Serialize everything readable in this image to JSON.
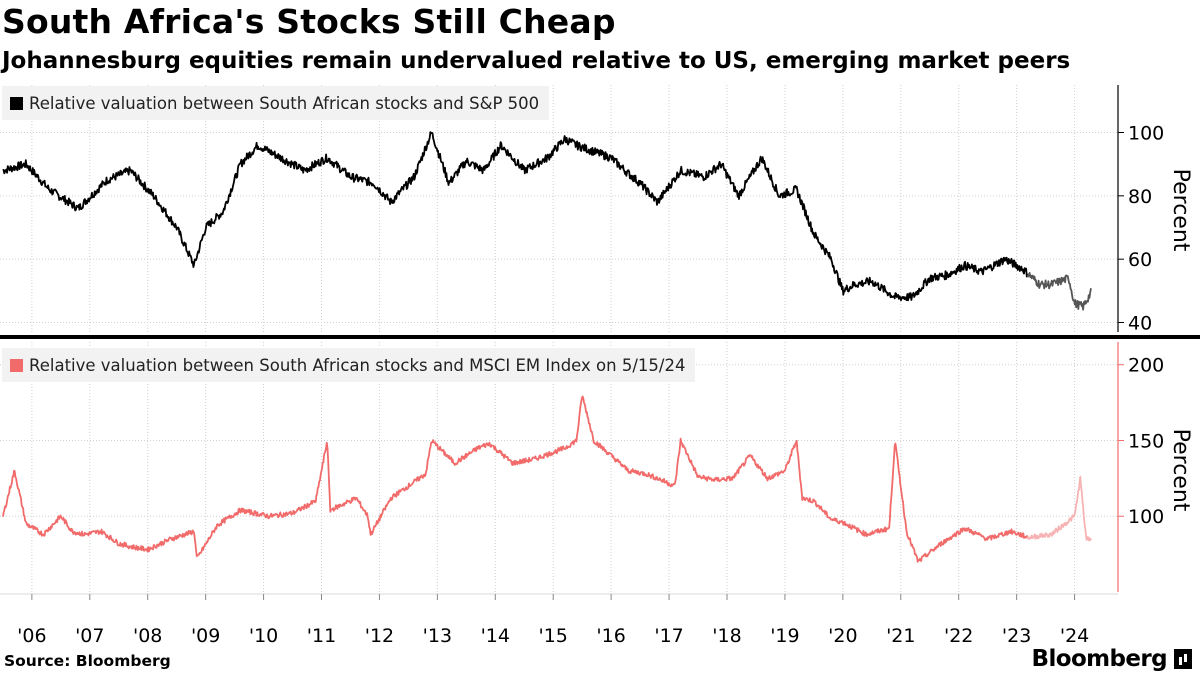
{
  "header": {
    "title": "South Africa's Stocks Still Cheap",
    "subtitle": "Johannesburg equities remain undervalued relative to US, emerging market peers"
  },
  "footer": {
    "source": "Source: Bloomberg",
    "brand": "Bloomberg"
  },
  "colors": {
    "top_series": "#000000",
    "bottom_series": "#f26b6b",
    "grid": "#c8c8c8"
  },
  "chart_data": [
    {
      "type": "line",
      "legend": "Relative valuation between South African stocks and S&P 500",
      "ylabel": "Percent",
      "ylim": [
        37,
        115
      ],
      "yticks": [
        40,
        60,
        80,
        100
      ],
      "x": [
        2005.5,
        2005.9,
        2006.3,
        2006.8,
        2007.3,
        2007.7,
        2008.1,
        2008.5,
        2008.8,
        2009.0,
        2009.3,
        2009.6,
        2009.9,
        2010.3,
        2010.7,
        2011.1,
        2011.5,
        2011.9,
        2012.2,
        2012.6,
        2012.9,
        2013.2,
        2013.5,
        2013.8,
        2014.1,
        2014.5,
        2014.9,
        2015.2,
        2015.4,
        2015.7,
        2016.0,
        2016.3,
        2016.5,
        2016.8,
        2017.2,
        2017.6,
        2017.9,
        2018.2,
        2018.6,
        2018.9,
        2019.2,
        2019.5,
        2019.8,
        2020.0,
        2020.2,
        2020.5,
        2020.9,
        2021.2,
        2021.5,
        2021.8,
        2022.1,
        2022.4,
        2022.8,
        2023.1,
        2023.4,
        2023.6,
        2023.9,
        2024.0,
        2024.15,
        2024.3
      ],
      "values": [
        88,
        90,
        82,
        76,
        85,
        88,
        80,
        70,
        58,
        70,
        75,
        90,
        96,
        92,
        88,
        92,
        86,
        84,
        78,
        86,
        100,
        84,
        91,
        88,
        96,
        88,
        92,
        98,
        96,
        94,
        92,
        87,
        84,
        78,
        88,
        86,
        90,
        80,
        92,
        80,
        82,
        68,
        60,
        50,
        52,
        53,
        48,
        48,
        54,
        55,
        58,
        56,
        60,
        57,
        52,
        52,
        54,
        46,
        45,
        50
      ],
      "series_style": "solid-black; last segment (2023.2 onward) dark gray"
    },
    {
      "type": "line",
      "legend": "Relative valuation between South African stocks and MSCI EM Index on 5/15/24",
      "ylabel": "Percent",
      "ylim": [
        50,
        215
      ],
      "yticks": [
        100,
        150,
        200
      ],
      "x": [
        2005.5,
        2005.7,
        2005.9,
        2006.2,
        2006.5,
        2006.7,
        2006.9,
        2007.2,
        2007.5,
        2007.7,
        2008.0,
        2008.4,
        2008.8,
        2008.85,
        2009.2,
        2009.6,
        2010.1,
        2010.5,
        2010.9,
        2011.1,
        2011.15,
        2011.6,
        2011.8,
        2011.85,
        2012.2,
        2012.8,
        2012.9,
        2013.3,
        2013.7,
        2013.9,
        2014.3,
        2014.7,
        2015.2,
        2015.4,
        2015.5,
        2015.7,
        2016.0,
        2016.3,
        2016.6,
        2016.8,
        2017.1,
        2017.2,
        2017.5,
        2017.8,
        2018.1,
        2018.4,
        2018.7,
        2019.0,
        2019.2,
        2019.3,
        2019.5,
        2019.8,
        2020.0,
        2020.4,
        2020.8,
        2020.9,
        2021.1,
        2021.3,
        2021.7,
        2022.1,
        2022.5,
        2022.9,
        2023.2,
        2023.6,
        2024.0,
        2024.1,
        2024.2,
        2024.3
      ],
      "values": [
        100,
        130,
        95,
        88,
        100,
        90,
        88,
        90,
        82,
        80,
        78,
        85,
        90,
        72,
        94,
        104,
        100,
        102,
        110,
        150,
        104,
        112,
        100,
        88,
        112,
        128,
        150,
        135,
        145,
        148,
        135,
        138,
        145,
        150,
        180,
        150,
        140,
        130,
        128,
        125,
        120,
        150,
        126,
        124,
        125,
        140,
        125,
        130,
        150,
        112,
        110,
        98,
        96,
        88,
        92,
        150,
        90,
        70,
        82,
        92,
        85,
        90,
        86,
        88,
        100,
        125,
        85,
        85
      ],
      "series_style": "salmon red; last segment (2023.2 onward) light pink"
    }
  ],
  "x_axis": {
    "tick_labels": [
      "'06",
      "'07",
      "'08",
      "'09",
      "'10",
      "'11",
      "'12",
      "'13",
      "'14",
      "'15",
      "'16",
      "'17",
      "'18",
      "'19",
      "'20",
      "'21",
      "'22",
      "'23",
      "'24"
    ],
    "tick_years": [
      2006,
      2007,
      2008,
      2009,
      2010,
      2011,
      2012,
      2013,
      2014,
      2015,
      2016,
      2017,
      2018,
      2019,
      2020,
      2021,
      2022,
      2023,
      2024
    ]
  }
}
